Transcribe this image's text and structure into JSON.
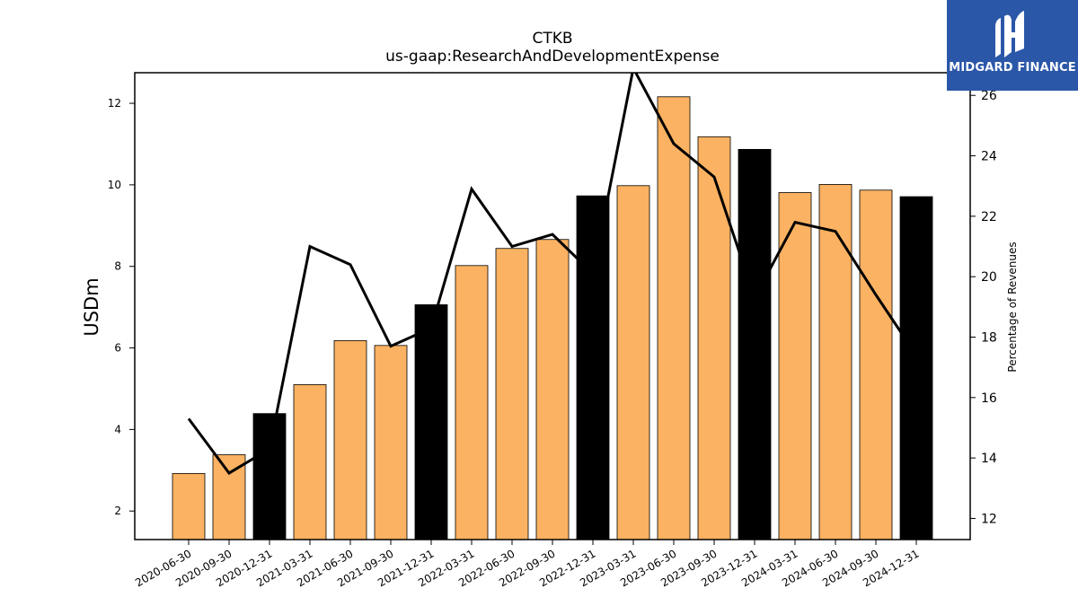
{
  "chart_data": {
    "type": "bar",
    "title": "CTKB",
    "subtitle": "us-gaap:ResearchAndDevelopmentExpense",
    "ylabel": "USDm",
    "y2label": "Percentage of Revenues",
    "categories": [
      "2020-06-30",
      "2020-09-30",
      "2020-12-31",
      "2021-03-31",
      "2021-06-30",
      "2021-09-30",
      "2021-12-31",
      "2022-03-31",
      "2022-06-30",
      "2022-09-30",
      "2022-12-31",
      "2023-03-31",
      "2023-06-30",
      "2023-09-30",
      "2023-12-31",
      "2024-03-31",
      "2024-06-30",
      "2024-09-30",
      "2024-12-31"
    ],
    "series": [
      {
        "kind": "bar",
        "axis": "left",
        "values": [
          2.92,
          3.38,
          4.39,
          5.1,
          6.18,
          6.06,
          7.06,
          8.02,
          8.44,
          8.66,
          9.73,
          9.98,
          12.16,
          11.18,
          10.87,
          9.81,
          10.01,
          9.87,
          9.71
        ]
      },
      {
        "kind": "line",
        "axis": "right",
        "values": [
          15.3,
          13.5,
          14.3,
          21.0,
          20.4,
          17.7,
          18.3,
          22.9,
          21.0,
          21.4,
          20.1,
          26.9,
          24.4,
          23.3,
          19.3,
          21.8,
          21.5,
          19.4,
          17.4
        ]
      }
    ],
    "ylim": [
      1.3,
      12.75
    ],
    "y2lim": [
      11.3,
      26.75
    ],
    "yticks": [
      2,
      4,
      6,
      8,
      10,
      12
    ],
    "y2ticks": [
      12,
      14,
      16,
      18,
      20,
      22,
      24,
      26
    ],
    "colors": {
      "bar": "#fbb262",
      "bar_q4": "#000000",
      "line": "#000000",
      "edge": "#000000"
    },
    "grid": false
  },
  "logo": {
    "name": "MIDGARD FINANCE"
  }
}
